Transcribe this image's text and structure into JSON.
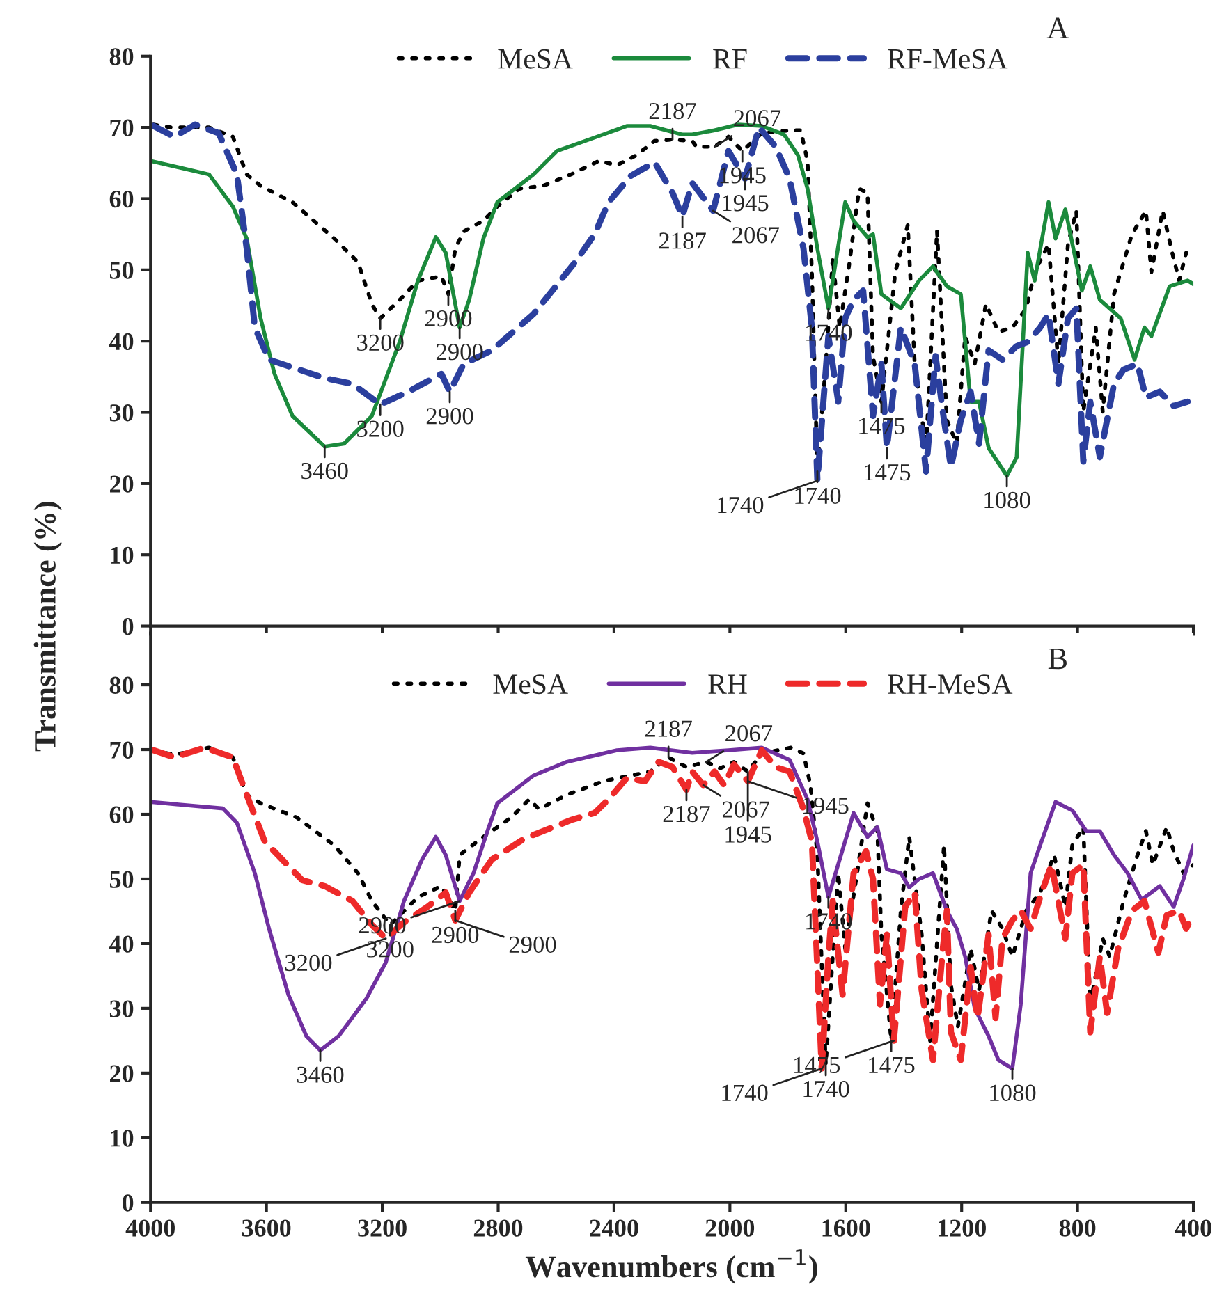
{
  "chart_data": [
    {
      "type": "line",
      "title": "A",
      "ylabel": "Transmittance (%)",
      "xlim": [
        4000,
        400
      ],
      "xticks": [
        4000,
        3600,
        3200,
        2800,
        2400,
        2000,
        1600,
        1200,
        800,
        400
      ],
      "ylim": [
        0,
        80
      ],
      "yticks": [
        0,
        10,
        20,
        30,
        40,
        50,
        60,
        70,
        80
      ],
      "tick_labels": "y",
      "legend": "top",
      "marker": "none",
      "series": [
        {
          "name": "MeSA",
          "color": "#000000",
          "line_style": "dotted",
          "x": [
            3990,
            3928,
            3798,
            3716,
            3668,
            3620,
            3510,
            3366,
            3284,
            3236,
            3207,
            3140,
            3077,
            2996,
            2972,
            2948,
            2919,
            2851,
            2803,
            2726,
            2645,
            2549,
            2452,
            2390,
            2323,
            2260,
            2198,
            2130,
            2116,
            2053,
            2005,
            1957,
            1890,
            1794,
            1756,
            1732,
            1717,
            1698,
            1669,
            1645,
            1621,
            1587,
            1554,
            1525,
            1506,
            1477,
            1429,
            1386,
            1362,
            1323,
            1285,
            1251,
            1217,
            1188,
            1155,
            1116,
            1073,
            1025,
            977,
            948,
            900,
            866,
            833,
            804,
            780,
            737,
            713,
            674,
            612,
            564,
            545,
            506,
            473,
            449,
            425
          ],
          "values": [
            70.4,
            70,
            70,
            68.7,
            63.4,
            61.8,
            59.5,
            54.4,
            51.1,
            45.2,
            43.2,
            45.8,
            48.5,
            49.1,
            46.6,
            53,
            55.4,
            56.9,
            58.9,
            61.4,
            61.8,
            63.4,
            65.3,
            64.7,
            66.1,
            68.1,
            68.3,
            68.1,
            67.3,
            67.3,
            68.7,
            66.7,
            69.2,
            69.6,
            69.6,
            65.3,
            49.7,
            21.7,
            36.8,
            51.6,
            41.9,
            51.1,
            61.4,
            60.8,
            37.9,
            31.5,
            49.7,
            56.3,
            36.8,
            25,
            55.5,
            28.9,
            25.6,
            40.7,
            36.8,
            45.2,
            41.3,
            41.9,
            44.6,
            49.7,
            53.6,
            36.8,
            53.6,
            58.3,
            30.1,
            41.9,
            30.1,
            46.6,
            55,
            58.3,
            49.7,
            58.3,
            52.4,
            48.5,
            52.4
          ]
        },
        {
          "name": "RF",
          "color": "#1b8a3c",
          "line_style": "solid",
          "x": [
            4000,
            3798,
            3716,
            3668,
            3620,
            3572,
            3510,
            3399,
            3332,
            3236,
            3140,
            3077,
            3015,
            2981,
            2933,
            2900,
            2851,
            2803,
            2678,
            2597,
            2486,
            2356,
            2275,
            2164,
            2130,
            2053,
            1972,
            1890,
            1813,
            1765,
            1732,
            1698,
            1660,
            1602,
            1573,
            1525,
            1506,
            1477,
            1410,
            1347,
            1299,
            1251,
            1203,
            1169,
            1140,
            1107,
            1044,
            1010,
            972,
            948,
            900,
            876,
            842,
            785,
            756,
            723,
            651,
            603,
            569,
            545,
            482,
            420,
            400
          ],
          "values": [
            65.3,
            63.4,
            58.9,
            54.4,
            43.2,
            35.4,
            29.5,
            25.2,
            25.6,
            29.5,
            39.9,
            48.5,
            54.6,
            52.4,
            41.9,
            45.8,
            54.4,
            59.5,
            63.4,
            66.7,
            68.3,
            70.2,
            70.2,
            69,
            69,
            69.6,
            70.4,
            70.2,
            69,
            66.1,
            61.4,
            53,
            44.6,
            59.5,
            56.9,
            54.6,
            55,
            46.6,
            44.6,
            48.5,
            50.5,
            47.7,
            46.6,
            31.5,
            31.5,
            25,
            21.1,
            23.7,
            52.4,
            48.5,
            59.5,
            54.4,
            58.5,
            47.1,
            50.5,
            45.8,
            43.2,
            37.4,
            41.9,
            40.7,
            47.7,
            48.5,
            48
          ]
        },
        {
          "name": "RF-MeSA",
          "color": "#2b3f9e",
          "line_style": "dashed",
          "x": [
            3990,
            3918,
            3846,
            3765,
            3702,
            3668,
            3640,
            3591,
            3399,
            3303,
            3207,
            3111,
            2996,
            2967,
            2919,
            2822,
            2678,
            2534,
            2467,
            2419,
            2342,
            2260,
            2198,
            2164,
            2130,
            2058,
            2005,
            1948,
            1900,
            1842,
            1794,
            1746,
            1717,
            1698,
            1660,
            1626,
            1602,
            1573,
            1540,
            1506,
            1477,
            1458,
            1410,
            1362,
            1323,
            1290,
            1265,
            1237,
            1203,
            1169,
            1140,
            1107,
            1059,
            1010,
            972,
            929,
            900,
            866,
            833,
            804,
            780,
            756,
            723,
            674,
            641,
            593,
            564,
            516,
            468,
            420
          ],
          "values": [
            70.2,
            68.7,
            70.4,
            69.2,
            63.4,
            53,
            41.9,
            37.4,
            34.8,
            34,
            31.1,
            32.9,
            35.4,
            32.9,
            36.8,
            38.7,
            43.8,
            51.1,
            55,
            59.5,
            63.2,
            65.1,
            60.8,
            57.5,
            62.2,
            58.3,
            66.7,
            62.8,
            70,
            67.3,
            62.8,
            53,
            41.9,
            20.4,
            40.7,
            31.5,
            43.2,
            45.8,
            47.1,
            29.5,
            36.8,
            25,
            41.9,
            36.8,
            21.7,
            37.9,
            30.1,
            22.3,
            28.9,
            32.9,
            25.6,
            38.7,
            37.4,
            39.3,
            39.9,
            41.9,
            43.8,
            34,
            43.2,
            44.6,
            23.1,
            31.5,
            23.7,
            34,
            36,
            36.8,
            32.1,
            32.9,
            30.9,
            31.5
          ]
        }
      ],
      "annotations": [
        {
          "text": "3200",
          "x": 3207,
          "y": 43.2
        },
        {
          "text": "3200",
          "x": 3207,
          "y": 31.1
        },
        {
          "text": "3460",
          "x": 3399,
          "y": 25.2
        },
        {
          "text": "2900",
          "x": 2972,
          "y": 46.6
        },
        {
          "text": "2900",
          "x": 2933,
          "y": 41.9
        },
        {
          "text": "2900",
          "x": 2967,
          "y": 32.9
        },
        {
          "text": "2187",
          "x": 2198,
          "y": 68.3
        },
        {
          "text": "2187",
          "x": 2164,
          "y": 57.5
        },
        {
          "text": "2067",
          "x": 2053,
          "y": 67.3
        },
        {
          "text": "2067",
          "x": 2058,
          "y": 58.3
        },
        {
          "text": "1945",
          "x": 1957,
          "y": 66.7
        },
        {
          "text": "1945",
          "x": 1948,
          "y": 62.8
        },
        {
          "text": "1740",
          "x": 1660,
          "y": 44.6
        },
        {
          "text": "1740",
          "x": 1698,
          "y": 21.7
        },
        {
          "text": "1740",
          "x": 1698,
          "y": 20.4
        },
        {
          "text": "1475",
          "x": 1477,
          "y": 31.5
        },
        {
          "text": "1475",
          "x": 1458,
          "y": 25
        },
        {
          "text": "1080",
          "x": 1044,
          "y": 21.1
        }
      ]
    },
    {
      "type": "line",
      "title": "B",
      "xlabel": "Wavenumbers (cm$^{−1}$)",
      "xlim": [
        4000,
        400
      ],
      "xticks": [
        4000,
        3600,
        3200,
        2800,
        2400,
        2000,
        1600,
        1200,
        800,
        400
      ],
      "ylim": [
        0,
        88
      ],
      "yticks": [
        0,
        10,
        20,
        30,
        40,
        50,
        60,
        70,
        80
      ],
      "legend": "top",
      "marker": "none",
      "series": [
        {
          "name": "MeSA",
          "color": "#000000",
          "line_style": "dotted",
          "x": [
            3990,
            3918,
            3798,
            3716,
            3668,
            3620,
            3495,
            3366,
            3284,
            3236,
            3173,
            3077,
            2996,
            2948,
            2933,
            2851,
            2755,
            2693,
            2659,
            2563,
            2438,
            2342,
            2275,
            2212,
            2150,
            2082,
            2034,
            1986,
            1938,
            1890,
            1789,
            1746,
            1722,
            1698,
            1669,
            1645,
            1626,
            1602,
            1564,
            1525,
            1491,
            1477,
            1443,
            1410,
            1381,
            1338,
            1309,
            1261,
            1237,
            1213,
            1169,
            1140,
            1097,
            1059,
            1025,
            977,
            929,
            881,
            842,
            818,
            780,
            756,
            713,
            689,
            641,
            593,
            564,
            540,
            492,
            468,
            434,
            400
          ],
          "values": [
            69.9,
            69.2,
            70.3,
            68.8,
            63,
            61.7,
            59.5,
            55.2,
            50.9,
            46.6,
            42.9,
            47.2,
            48.9,
            45.1,
            53.7,
            56.5,
            59.5,
            62.3,
            60.8,
            63,
            65.1,
            66,
            66.6,
            68.8,
            67.3,
            68.1,
            67.1,
            68.1,
            66.6,
            69.4,
            70.3,
            69.4,
            64.5,
            53.7,
            21.3,
            38,
            50.9,
            39.2,
            50,
            61.7,
            57.4,
            41.4,
            25,
            45.1,
            56.5,
            41.4,
            25,
            55.2,
            33.6,
            27.2,
            39.2,
            32.8,
            45.1,
            42.3,
            38,
            45.1,
            47.9,
            53.7,
            45.7,
            55.2,
            58,
            30.6,
            40.8,
            38,
            46.6,
            53.7,
            57.4,
            52.2,
            58,
            54.3,
            50.9,
            52.2
          ]
        },
        {
          "name": "RH",
          "color": "#7030a0",
          "line_style": "solid",
          "x": [
            4000,
            3750,
            3702,
            3640,
            3591,
            3524,
            3462,
            3414,
            3351,
            3255,
            3188,
            3125,
            3063,
            3015,
            2981,
            2933,
            2885,
            2837,
            2803,
            2678,
            2563,
            2390,
            2275,
            2130,
            2005,
            1890,
            1794,
            1732,
            1698,
            1660,
            1573,
            1525,
            1491,
            1458,
            1410,
            1381,
            1347,
            1299,
            1251,
            1217,
            1188,
            1155,
            1107,
            1073,
            1025,
            996,
            962,
            929,
            876,
            818,
            770,
            723,
            674,
            627,
            579,
            516,
            468,
            434,
            400
          ],
          "values": [
            61.9,
            60.9,
            58.7,
            50.9,
            42.3,
            32.1,
            25.7,
            23.5,
            25.7,
            31.5,
            37.1,
            46.6,
            53,
            56.5,
            53.7,
            46.6,
            50.9,
            57.4,
            61.7,
            66,
            68.1,
            69.9,
            70.3,
            69.5,
            69.9,
            70.3,
            68.4,
            62.3,
            55.8,
            47.2,
            60.2,
            56.5,
            58,
            51.5,
            50.9,
            48.7,
            50,
            50.9,
            45.1,
            42.3,
            38,
            30,
            25.7,
            22,
            20.7,
            30.6,
            50.9,
            55.2,
            61.9,
            60.6,
            57.4,
            57.4,
            53.7,
            50.9,
            46.8,
            48.9,
            45.7,
            50,
            55.2
          ]
        },
        {
          "name": "RH-MeSA",
          "color": "#ee2a2a",
          "line_style": "dashed",
          "x": [
            3990,
            3918,
            3813,
            3716,
            3668,
            3606,
            3476,
            3399,
            3303,
            3236,
            3188,
            3125,
            3044,
            2981,
            2948,
            2900,
            2822,
            2707,
            2549,
            2467,
            2419,
            2356,
            2294,
            2246,
            2198,
            2150,
            2130,
            2092,
            2053,
            2020,
            1986,
            1938,
            1890,
            1842,
            1794,
            1746,
            1717,
            1683,
            1660,
            1645,
            1611,
            1573,
            1530,
            1506,
            1482,
            1458,
            1434,
            1395,
            1362,
            1338,
            1299,
            1265,
            1251,
            1237,
            1203,
            1169,
            1145,
            1107,
            1083,
            1059,
            1025,
            996,
            962,
            929,
            890,
            842,
            818,
            780,
            756,
            723,
            698,
            660,
            612,
            569,
            521,
            492,
            449,
            425,
            400
          ],
          "values": [
            69.9,
            68.8,
            70.3,
            68.8,
            63,
            55.8,
            49.8,
            48.9,
            46.6,
            42.9,
            40.8,
            43.3,
            45.7,
            47.9,
            43.6,
            47.9,
            53,
            56.3,
            59.1,
            60.2,
            62.3,
            65.6,
            65.1,
            68.1,
            67.3,
            63.8,
            66.6,
            64.5,
            66.6,
            64.5,
            67.7,
            65.1,
            69.9,
            67.3,
            66.6,
            60.8,
            55.8,
            20.7,
            38,
            46.6,
            32.1,
            50.9,
            54.3,
            50,
            30.6,
            41.4,
            25,
            45.7,
            47.9,
            32.8,
            22,
            39.2,
            45.1,
            26.3,
            22,
            36.4,
            28.5,
            41.4,
            28.5,
            40.8,
            43.6,
            45.1,
            42.3,
            47.2,
            52.2,
            40.8,
            50.9,
            52.2,
            26.3,
            38,
            29.3,
            39.2,
            45.1,
            46.6,
            38.6,
            44.4,
            45.1,
            42.3,
            44.6
          ]
        }
      ],
      "annotations": [
        {
          "text": "3200",
          "x": 3173,
          "y": 42.9
        },
        {
          "text": "3200",
          "x": 3188,
          "y": 40.8
        },
        {
          "text": "3460",
          "x": 3414,
          "y": 23.5
        },
        {
          "text": "2900",
          "x": 2948,
          "y": 45.1
        },
        {
          "text": "2900",
          "x": 2933,
          "y": 46.6
        },
        {
          "text": "2900",
          "x": 2948,
          "y": 43.6
        },
        {
          "text": "2187",
          "x": 2212,
          "y": 68.8
        },
        {
          "text": "2187",
          "x": 2150,
          "y": 63.8
        },
        {
          "text": "2067",
          "x": 2082,
          "y": 68.1
        },
        {
          "text": "2067",
          "x": 2092,
          "y": 64.5
        },
        {
          "text": "1945",
          "x": 1938,
          "y": 65.1
        },
        {
          "text": "1945",
          "x": 1938,
          "y": 66.6
        },
        {
          "text": "1740",
          "x": 1660,
          "y": 47.2
        },
        {
          "text": "1740",
          "x": 1669,
          "y": 21.3
        },
        {
          "text": "1740",
          "x": 1683,
          "y": 20.7
        },
        {
          "text": "1475",
          "x": 1443,
          "y": 25
        },
        {
          "text": "1475",
          "x": 1434,
          "y": 25
        },
        {
          "text": "1080",
          "x": 1025,
          "y": 20.7
        }
      ]
    }
  ]
}
